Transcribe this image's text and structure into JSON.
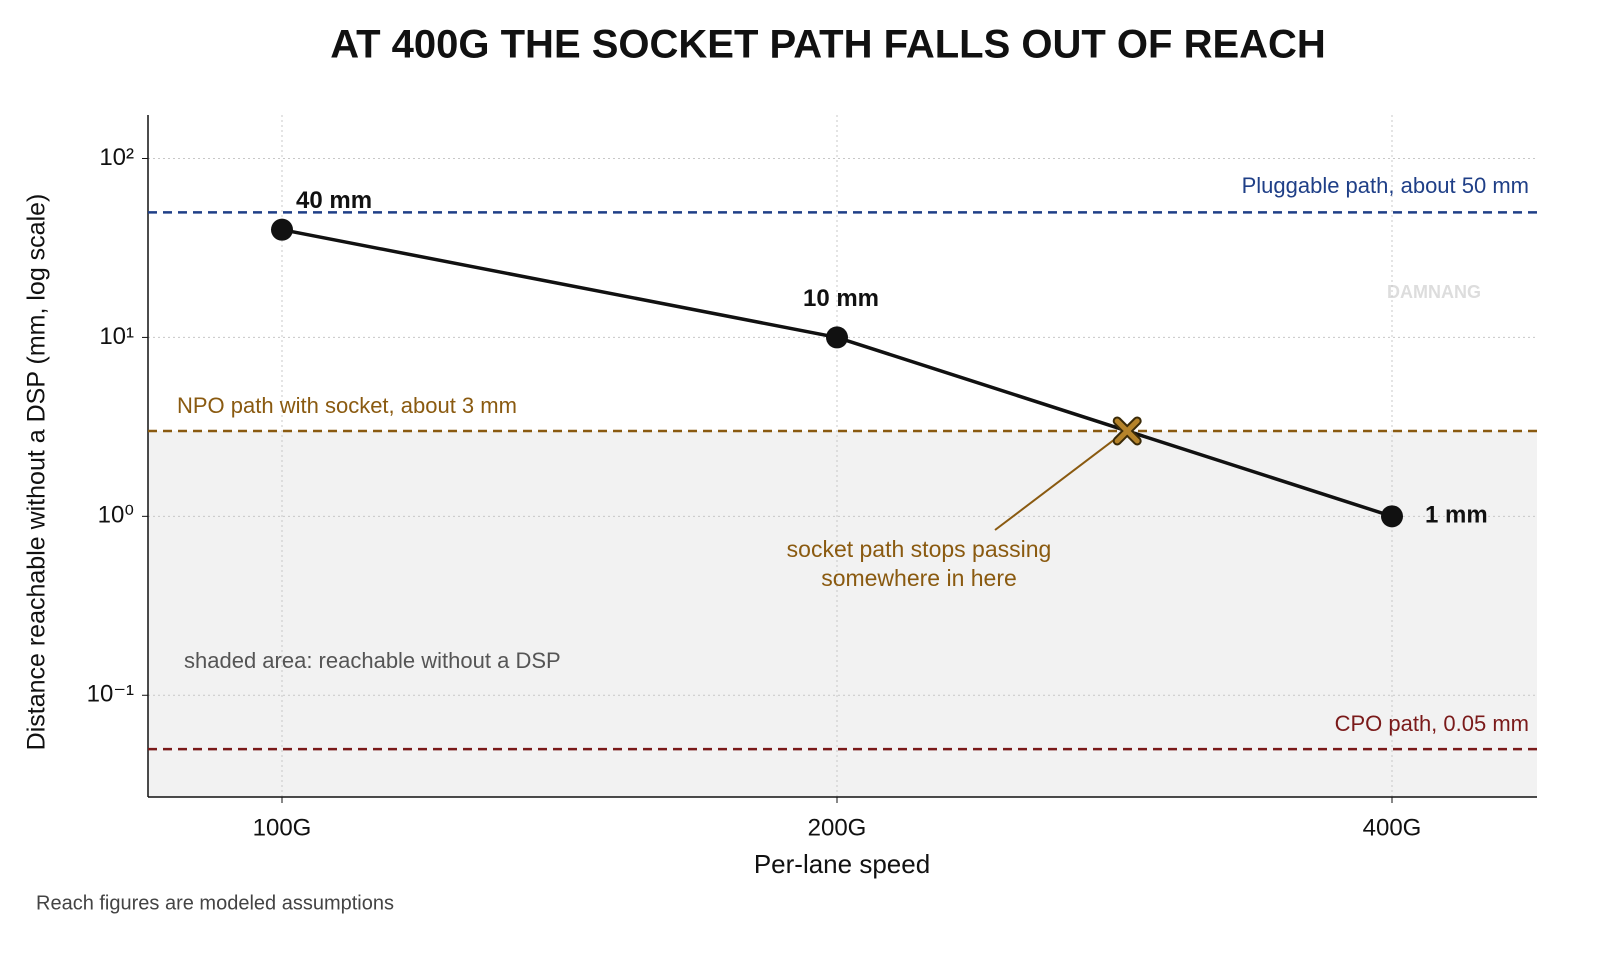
{
  "chart_data": {
    "type": "line",
    "title": "AT 400G THE SOCKET PATH FALLS OUT OF REACH",
    "x_label": "Per-lane speed",
    "y_label": "Distance reachable without a DSP (mm, log scale)",
    "categories": [
      "100G",
      "200G",
      "400G"
    ],
    "series": [
      {
        "name": "Socket path",
        "color": "#111111",
        "values": [
          40,
          10,
          1
        ],
        "value_labels": [
          "40 mm",
          "10 mm",
          "1 mm"
        ]
      }
    ],
    "y_scale": "log",
    "ylim": [
      0.027,
      175
    ],
    "yticks": [
      {
        "value": 0.1,
        "label": "10⁻¹"
      },
      {
        "value": 1,
        "label": "10⁰"
      },
      {
        "value": 10,
        "label": "10¹"
      },
      {
        "value": 100,
        "label": "10²"
      }
    ],
    "grid": true,
    "reference_lines": [
      {
        "name": "Pluggable path, about 50 mm",
        "value": 50,
        "color": "#1f3f87"
      },
      {
        "name": "NPO path with socket, about 3 mm",
        "value": 3,
        "color": "#8a5a10"
      },
      {
        "name": "CPO path, 0.05 mm",
        "value": 0.05,
        "color": "#7a1a1a"
      }
    ],
    "annotations": [
      "socket path stops passing",
      "somewhere in here",
      "shaded area: reachable without a DSP"
    ],
    "footnote": "Reach figures are modeled assumptions",
    "watermark": "DAMNANG"
  }
}
